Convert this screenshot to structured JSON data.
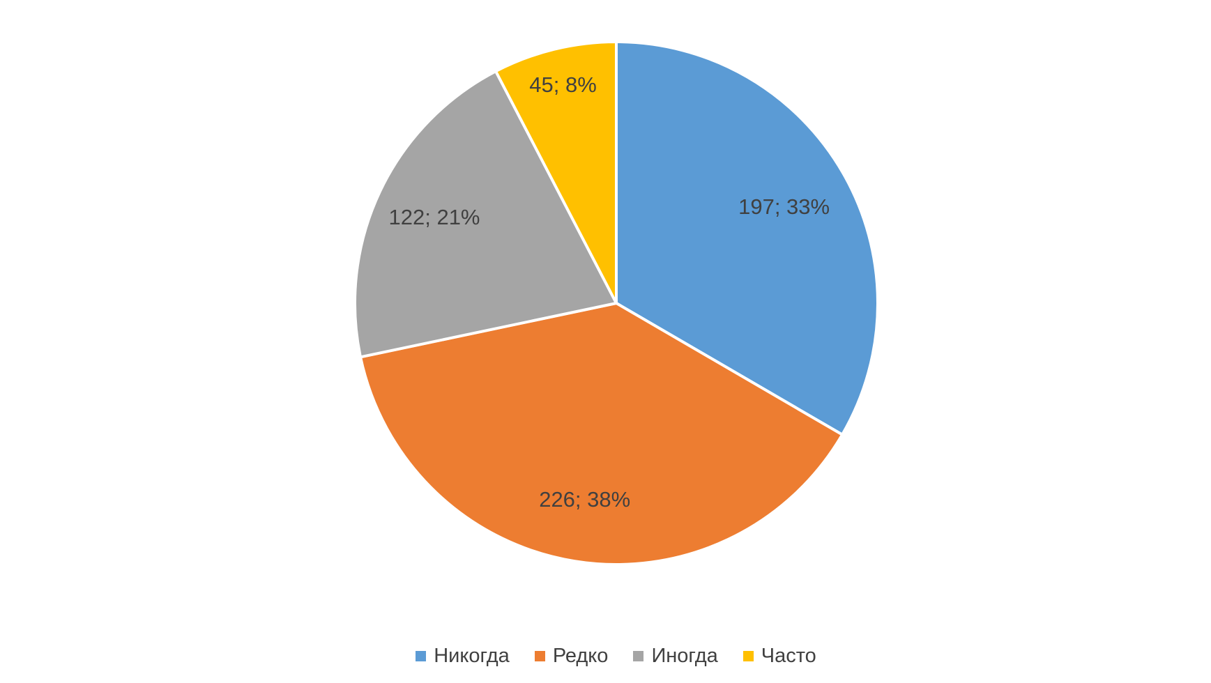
{
  "chart_data": {
    "type": "pie",
    "title": "",
    "categories": [
      "Никогда",
      "Редко",
      "Иногда",
      "Часто"
    ],
    "values": [
      197,
      226,
      122,
      45
    ],
    "percentages": [
      33,
      38,
      21,
      8
    ],
    "data_labels": [
      "197; 33%",
      "226; 38%",
      "122; 21%",
      "45; 8%"
    ],
    "colors": [
      "#5b9bd5",
      "#ed7d31",
      "#a5a5a5",
      "#ffc000"
    ],
    "slice_border_color": "#ffffff",
    "label_color": "#404040",
    "background": "#ffffff",
    "legend_position": "bottom",
    "start_angle_deg": 0,
    "direction": "clockwise"
  }
}
